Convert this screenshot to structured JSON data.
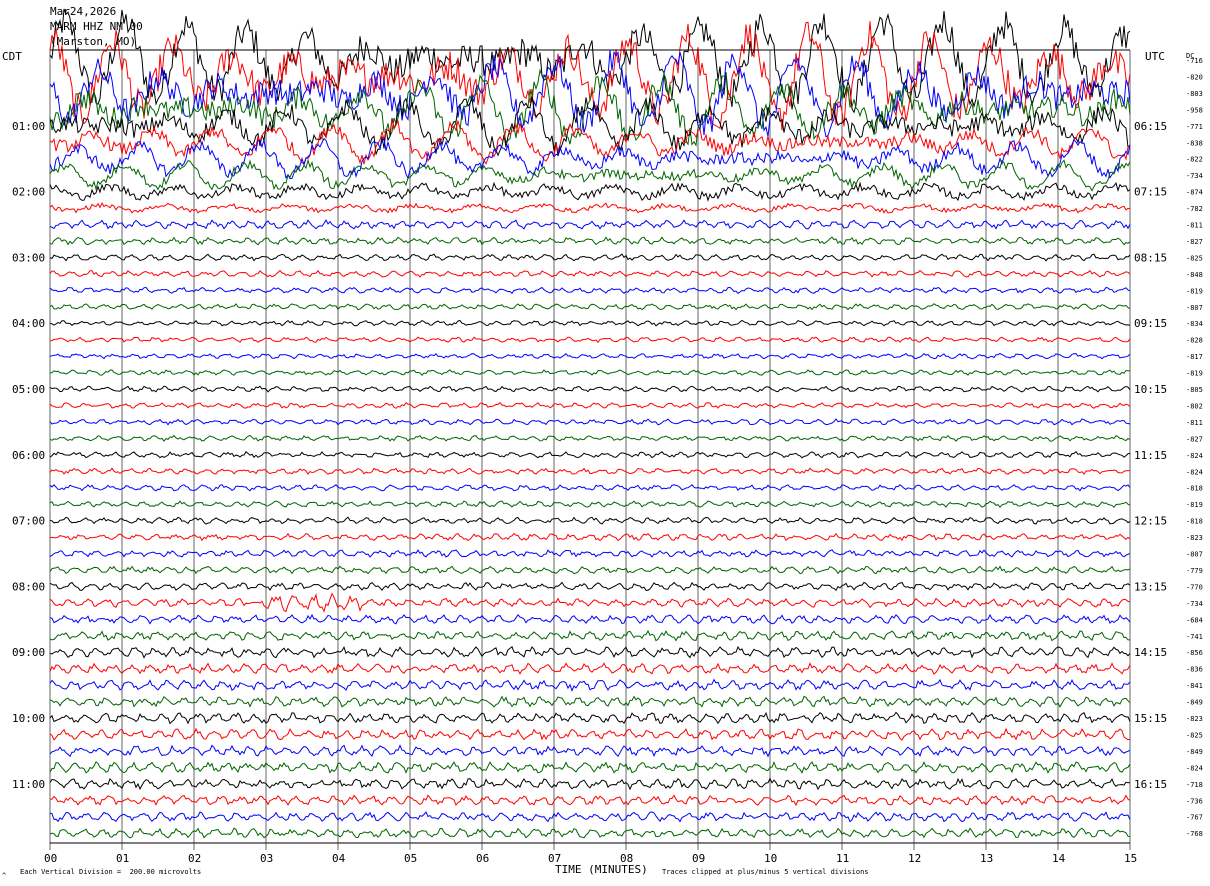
{
  "header": {
    "date": "Mar24,2026",
    "station": "MARM HHZ NM 00",
    "location": "(Marston, MO)"
  },
  "left_zone_label": "CDT",
  "right_zone_label": "UTC",
  "dc_label": "DC",
  "colors": {
    "trace_cycle": [
      "#000000",
      "#ff0000",
      "#0000ff",
      "#006400"
    ],
    "grid": "#000000",
    "background": "#ffffff"
  },
  "footer": {
    "scale_note": "Each Vertical Division =  200.00 microvolts",
    "clip_note": "Traces clipped at plus/minus 5 vertical divisions",
    "corner_mark": "^"
  },
  "chart_data": {
    "type": "line",
    "xlabel": "TIME (MINUTES)",
    "xlim": [
      0,
      15
    ],
    "x_ticks": [
      "00",
      "01",
      "02",
      "03",
      "04",
      "05",
      "06",
      "07",
      "08",
      "09",
      "10",
      "11",
      "12",
      "13",
      "14",
      "15"
    ],
    "left_time_labels": [
      "01:00",
      "02:00",
      "03:00",
      "04:00",
      "05:00",
      "06:00",
      "07:00",
      "08:00",
      "09:00",
      "10:00",
      "11:00"
    ],
    "right_time_labels": [
      "06:15",
      "07:15",
      "08:15",
      "09:15",
      "10:15",
      "11:15",
      "12:15",
      "13:15",
      "14:15",
      "15:15",
      "16:15"
    ],
    "lines_per_hour": 4,
    "line_minutes": 15,
    "dc_offsets": [
      -716,
      -820,
      -803,
      -958,
      -771,
      -838,
      -822,
      -734,
      -874,
      -782,
      -811,
      -827,
      -825,
      -848,
      -819,
      -807,
      -834,
      -828,
      -817,
      -819,
      -805,
      -802,
      -811,
      -827,
      -824,
      -824,
      -818,
      -819,
      -818,
      -823,
      -807,
      -779,
      -770,
      -734,
      -684,
      -741,
      -856,
      -836,
      -841,
      -849,
      -823,
      -825,
      -849,
      -824,
      -718,
      -736,
      -767,
      -768
    ],
    "amplitude_profile": [
      3.8,
      4.0,
      3.3,
      2.8,
      2.2,
      1.6,
      1.5,
      1.1,
      1.0,
      0.55,
      0.5,
      0.42,
      0.38,
      0.36,
      0.34,
      0.33,
      0.3,
      0.3,
      0.3,
      0.3,
      0.32,
      0.32,
      0.32,
      0.32,
      0.34,
      0.34,
      0.35,
      0.35,
      0.38,
      0.4,
      0.4,
      0.42,
      0.45,
      0.5,
      0.5,
      0.55,
      0.62,
      0.6,
      0.6,
      0.6,
      0.62,
      0.62,
      0.62,
      0.62,
      0.6,
      0.55,
      0.55,
      0.55
    ]
  }
}
